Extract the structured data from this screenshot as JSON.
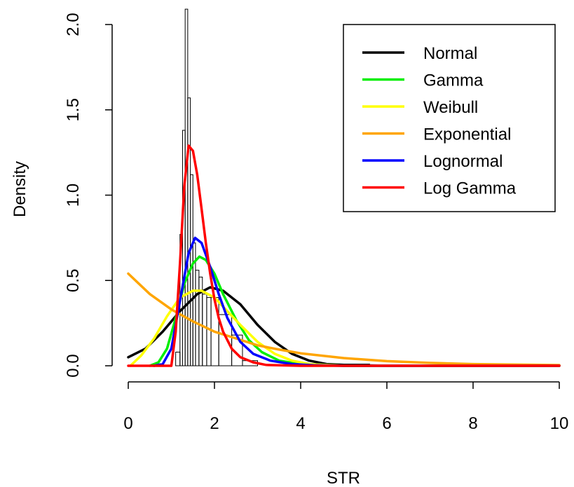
{
  "chart_data": {
    "type": "histogram-with-density-curves",
    "title": "",
    "xlabel": "STR",
    "ylabel": "Density",
    "xlim": [
      0,
      10
    ],
    "ylim": [
      0,
      2.0
    ],
    "x_ticks": [
      "0",
      "2",
      "4",
      "6",
      "8",
      "10"
    ],
    "y_ticks": [
      "0.0",
      "0.5",
      "1.0",
      "1.5",
      "2.0"
    ],
    "x_tick_values": [
      0,
      2,
      4,
      6,
      8,
      10
    ],
    "y_tick_values": [
      0,
      0.5,
      1.0,
      1.5,
      2.0
    ],
    "legend_position": "top-right",
    "grid": false,
    "histogram": {
      "bars": [
        {
          "x0": 1.1,
          "x1": 1.2,
          "density": 0.08
        },
        {
          "x0": 1.2,
          "x1": 1.26,
          "density": 0.77
        },
        {
          "x0": 1.26,
          "x1": 1.32,
          "density": 1.38
        },
        {
          "x0": 1.32,
          "x1": 1.38,
          "density": 2.09
        },
        {
          "x0": 1.38,
          "x1": 1.44,
          "density": 1.57
        },
        {
          "x0": 1.44,
          "x1": 1.5,
          "density": 1.12
        },
        {
          "x0": 1.5,
          "x1": 1.56,
          "density": 0.72
        },
        {
          "x0": 1.56,
          "x1": 1.64,
          "density": 0.56
        },
        {
          "x0": 1.64,
          "x1": 1.72,
          "density": 0.52
        },
        {
          "x0": 1.72,
          "x1": 1.82,
          "density": 0.42
        },
        {
          "x0": 1.82,
          "x1": 1.92,
          "density": 0.4
        },
        {
          "x0": 1.92,
          "x1": 2.1,
          "density": 0.4
        },
        {
          "x0": 2.1,
          "x1": 2.4,
          "density": 0.3
        },
        {
          "x0": 2.4,
          "x1": 2.65,
          "density": 0.18
        },
        {
          "x0": 2.65,
          "x1": 3.0,
          "density": 0.03
        },
        {
          "x0": 4.6,
          "x1": 5.6,
          "density": 0.01
        },
        {
          "x0": 7.8,
          "x1": 8.6,
          "density": 0.01
        }
      ]
    },
    "series": [
      {
        "name": "Normal",
        "color": "#000000",
        "x": [
          0,
          0.4,
          0.8,
          1.2,
          1.6,
          1.9,
          2.2,
          2.6,
          3.0,
          3.4,
          3.8,
          4.2,
          4.6,
          5.0,
          6,
          8,
          10
        ],
        "y": [
          0.05,
          0.1,
          0.2,
          0.32,
          0.42,
          0.46,
          0.44,
          0.36,
          0.24,
          0.14,
          0.07,
          0.03,
          0.01,
          0.005,
          0,
          0,
          0
        ]
      },
      {
        "name": "Gamma",
        "color": "#00ee00",
        "x": [
          0.5,
          0.7,
          0.9,
          1.1,
          1.3,
          1.5,
          1.65,
          1.8,
          2.0,
          2.2,
          2.5,
          2.8,
          3.1,
          3.5,
          4.0,
          5,
          10
        ],
        "y": [
          0,
          0.02,
          0.1,
          0.28,
          0.48,
          0.6,
          0.64,
          0.62,
          0.54,
          0.42,
          0.27,
          0.15,
          0.08,
          0.03,
          0.01,
          0,
          0
        ]
      },
      {
        "name": "Weibull",
        "color": "#ffff00",
        "x": [
          0.05,
          0.3,
          0.6,
          0.9,
          1.2,
          1.5,
          1.7,
          2.0,
          2.3,
          2.6,
          3.0,
          3.4,
          3.8,
          4.2,
          5,
          10
        ],
        "y": [
          0,
          0.06,
          0.16,
          0.29,
          0.4,
          0.44,
          0.44,
          0.4,
          0.32,
          0.24,
          0.14,
          0.07,
          0.03,
          0.01,
          0,
          0
        ]
      },
      {
        "name": "Exponential",
        "color": "#ffa500",
        "x": [
          0,
          0.5,
          1.0,
          1.5,
          2.0,
          2.5,
          3.0,
          3.5,
          4.0,
          5.0,
          6.0,
          7.0,
          8.0,
          10.0
        ],
        "y": [
          0.54,
          0.42,
          0.33,
          0.26,
          0.2,
          0.16,
          0.12,
          0.095,
          0.073,
          0.045,
          0.027,
          0.017,
          0.01,
          0.004
        ]
      },
      {
        "name": "Lognormal",
        "color": "#0000ff",
        "x": [
          0.6,
          0.8,
          1.0,
          1.2,
          1.4,
          1.55,
          1.7,
          1.9,
          2.1,
          2.3,
          2.6,
          2.9,
          3.3,
          3.8,
          4.3,
          5,
          10
        ],
        "y": [
          0,
          0.01,
          0.1,
          0.38,
          0.66,
          0.75,
          0.72,
          0.58,
          0.42,
          0.28,
          0.14,
          0.07,
          0.03,
          0.01,
          0.003,
          0,
          0
        ]
      },
      {
        "name": "Log Gamma",
        "color": "#ff0000",
        "x": [
          0,
          1.0,
          1.1,
          1.2,
          1.3,
          1.4,
          1.5,
          1.6,
          1.7,
          1.8,
          1.9,
          2.0,
          2.1,
          2.2,
          2.4,
          2.6,
          2.9,
          3.2,
          4.0,
          10.0
        ],
        "y": [
          0,
          0,
          0.2,
          0.6,
          1.05,
          1.29,
          1.26,
          1.12,
          0.92,
          0.72,
          0.54,
          0.39,
          0.28,
          0.2,
          0.1,
          0.05,
          0.02,
          0.005,
          0,
          0
        ]
      }
    ]
  }
}
